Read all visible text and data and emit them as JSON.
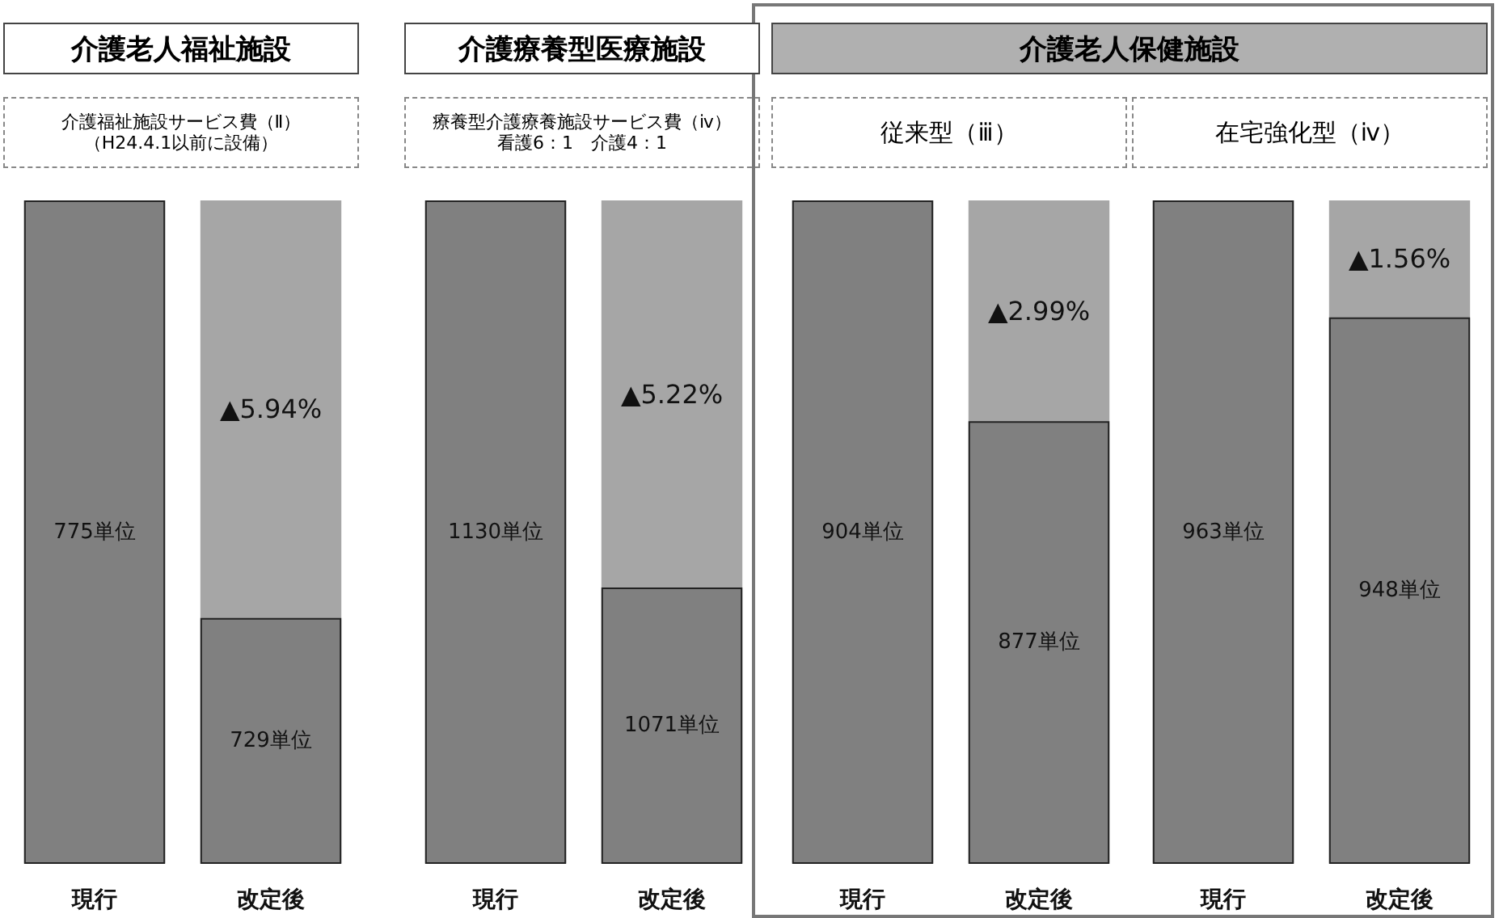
{
  "chart_data": [
    {
      "type": "bar",
      "title": "介護老人福祉施設",
      "subtitle": "介護福祉施設サービス費（Ⅱ）",
      "categories": [
        "現行",
        "改定後"
      ],
      "values": [
        775,
        729
      ],
      "value_labels": [
        "775単位",
        "729単位"
      ],
      "color": "#808080",
      "ylim": [
        702,
        775
      ],
      "annotations": [
        "（H24.4.1以前に設備）",
        "▲5.94%"
      ]
    },
    {
      "type": "bar",
      "title": "介護療養型医療施設",
      "subtitle": "療養型介護療養施設サービス費（ⅳ）",
      "categories": [
        "現行",
        "改定後"
      ],
      "values": [
        1130,
        1071
      ],
      "value_labels": [
        "1130単位",
        "1071単位"
      ],
      "color": "#808080",
      "ylim": [
        1029,
        1130
      ],
      "annotations": [
        "看護6：1　介護4：1",
        "▲5.22%"
      ]
    },
    {
      "type": "bar",
      "title": "介護老人保健施設",
      "subtitle": "従来型（ⅲ）",
      "categories": [
        "現行",
        "改定後"
      ],
      "values": [
        904,
        877
      ],
      "value_labels": [
        "904単位",
        "877単位"
      ],
      "color": "#808080",
      "ylim": [
        823,
        904
      ],
      "annotations": [
        "▲2.99%"
      ]
    },
    {
      "type": "bar",
      "subtitle": "在宅強化型（ⅳ）",
      "categories": [
        "現行",
        "改定後"
      ],
      "values": [
        963,
        948
      ],
      "value_labels": [
        "963単位",
        "948単位"
      ],
      "color": "#808080",
      "ylim": [
        878,
        963
      ],
      "annotations": [
        "▲1.56%"
      ]
    }
  ]
}
